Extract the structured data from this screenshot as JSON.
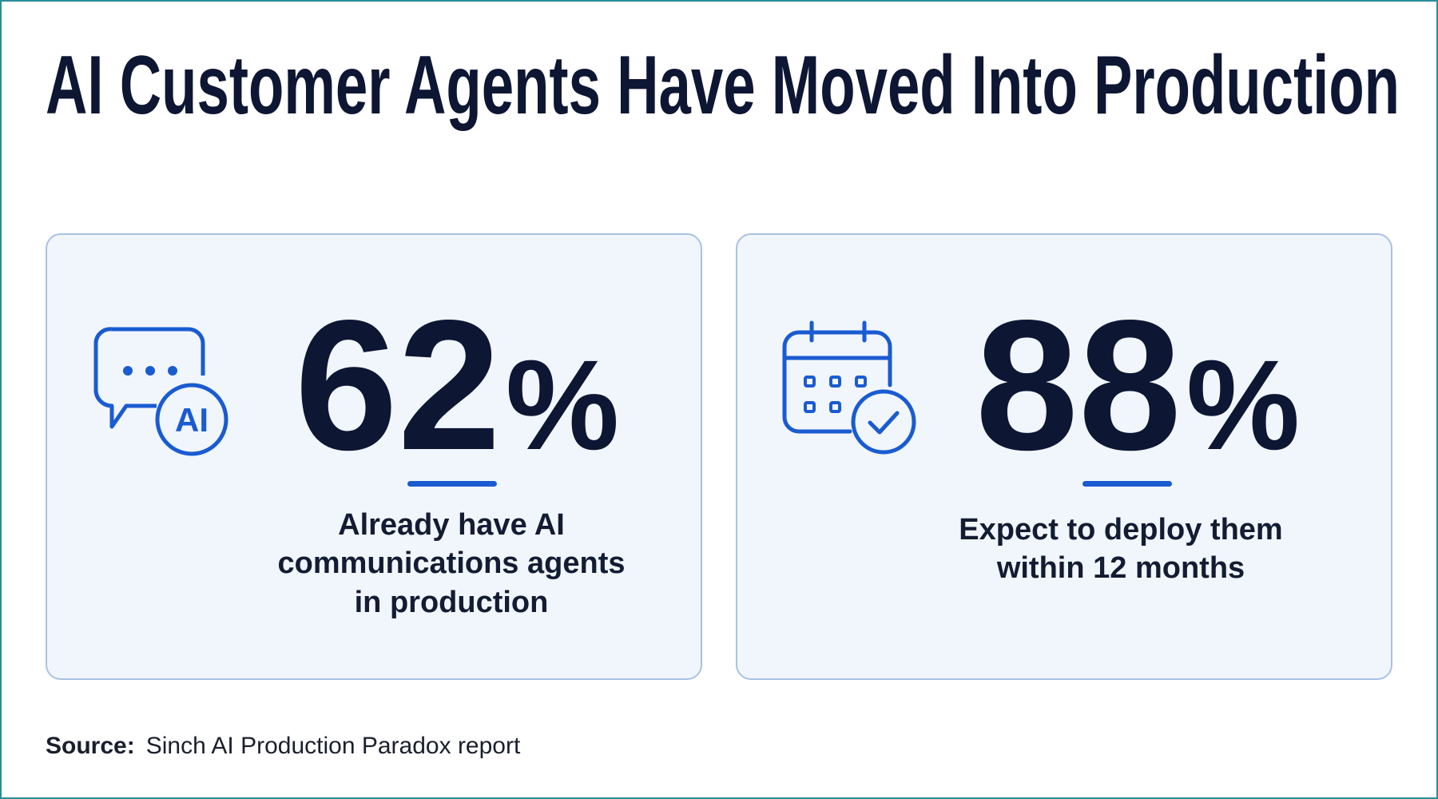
{
  "header": {
    "title": "AI Customer Agents Have Moved Into Production"
  },
  "cards": [
    {
      "icon_label": "AI",
      "stat_number": "62",
      "stat_unit": "%",
      "lines": [
        "Already have AI",
        "communications agents",
        "in production"
      ]
    },
    {
      "stat_number": "88",
      "stat_unit": "%",
      "lines": [
        "Expect to deploy them",
        "within 12 months"
      ]
    }
  ],
  "footer": {
    "source_label": "Source:",
    "source_text": "Sinch AI Production Paradox report"
  }
}
